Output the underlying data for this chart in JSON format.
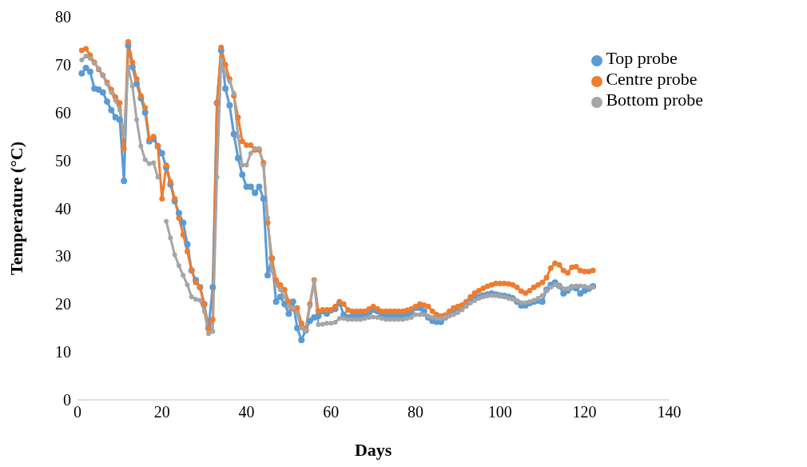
{
  "chart_data": {
    "type": "line",
    "xlabel": "Days",
    "ylabel": "Temperature (°C)",
    "x": [
      1,
      2,
      3,
      4,
      5,
      6,
      7,
      8,
      9,
      10,
      11,
      12,
      13,
      14,
      15,
      16,
      17,
      18,
      19,
      20,
      21,
      22,
      23,
      24,
      25,
      26,
      27,
      28,
      29,
      30,
      31,
      32,
      33,
      34,
      35,
      36,
      37,
      38,
      39,
      40,
      41,
      42,
      43,
      44,
      45,
      46,
      47,
      48,
      49,
      50,
      51,
      52,
      53,
      54,
      55,
      56,
      57,
      58,
      59,
      60,
      61,
      62,
      63,
      64,
      65,
      66,
      67,
      68,
      69,
      70,
      71,
      72,
      73,
      74,
      75,
      76,
      77,
      78,
      79,
      80,
      81,
      82,
      83,
      84,
      85,
      86,
      87,
      88,
      89,
      90,
      91,
      92,
      93,
      94,
      95,
      96,
      97,
      98,
      99,
      100,
      101,
      102,
      103,
      104,
      105,
      106,
      107,
      108,
      109,
      110,
      111,
      112,
      113,
      114,
      115,
      116,
      117,
      118,
      119,
      120,
      121,
      122
    ],
    "series": [
      {
        "name": "Top probe",
        "color": "#5b9bd5",
        "values": [
          68.2,
          69.3,
          68.5,
          65,
          64.8,
          64.2,
          62.3,
          60.5,
          59,
          58.5,
          45.7,
          74,
          69.5,
          66,
          63,
          60,
          54,
          54.5,
          53,
          51.5,
          48.5,
          45,
          41.5,
          39,
          37,
          32.5,
          27,
          25,
          23.5,
          20,
          15,
          23.5,
          62,
          73,
          65,
          61.5,
          55.5,
          50.5,
          47,
          44.5,
          44.5,
          43.2,
          44.5,
          42,
          26,
          29.5,
          20.5,
          21.5,
          20,
          18,
          20.5,
          15,
          12.5,
          14.5,
          16.5,
          17.2,
          17.5,
          18.5,
          18,
          18.7,
          19,
          20.2,
          17.8,
          17.2,
          17.4,
          17.5,
          17.5,
          17.8,
          18.2,
          18.8,
          18.5,
          17.8,
          17.6,
          17.6,
          17.6,
          17.6,
          17.7,
          17.8,
          18.3,
          19.2,
          19.2,
          18.5,
          17.2,
          16.5,
          16.3,
          16.3,
          17.2,
          17.8,
          18.3,
          18.8,
          19.5,
          20.3,
          20.8,
          21.2,
          21.5,
          21.8,
          22,
          22.2,
          22,
          21.8,
          21.7,
          21.5,
          21.2,
          20.5,
          19.7,
          19.7,
          20.2,
          20.5,
          20.7,
          20.5,
          23,
          24,
          24.5,
          23.8,
          22.2,
          22.8,
          23.5,
          23.3,
          22.2,
          22.8,
          23.2,
          23.7
        ]
      },
      {
        "name": "Centre probe",
        "color": "#ed7d31",
        "values": [
          73,
          73.3,
          72,
          70.5,
          69,
          67.8,
          66.3,
          64.8,
          63.2,
          62,
          52.5,
          74.8,
          70.5,
          67,
          63.5,
          61,
          54.5,
          55,
          53,
          42,
          49,
          45.5,
          42,
          38,
          34.5,
          31,
          27,
          24.5,
          23.5,
          20,
          14.8,
          16.8,
          62,
          73.6,
          70,
          67,
          63.5,
          59,
          54,
          53.2,
          53.2,
          52.2,
          52.2,
          49.5,
          37,
          29.5,
          25,
          24,
          23,
          20.5,
          19,
          19.2,
          16,
          14.8,
          20,
          25,
          18.5,
          18.8,
          18.8,
          18.8,
          19.5,
          20.5,
          20,
          18.8,
          18.5,
          18.5,
          18.5,
          18.5,
          19,
          19.5,
          19,
          18.5,
          18.5,
          18.5,
          18.5,
          18.5,
          18.5,
          18.7,
          19,
          19.5,
          20,
          19.8,
          19.5,
          18.5,
          17.8,
          17.5,
          17.7,
          18.5,
          19.2,
          19.5,
          19.8,
          20.5,
          21.5,
          22.3,
          22.8,
          23.3,
          23.7,
          24,
          24.3,
          24.3,
          24.3,
          24.2,
          24,
          23.5,
          22.7,
          22.3,
          22.8,
          23.5,
          24,
          24.5,
          25.5,
          27.5,
          28.5,
          28.2,
          27,
          26.5,
          27.7,
          27.8,
          27,
          26.8,
          26.8,
          27
        ]
      },
      {
        "name": "Bottom probe",
        "color": "#a5a5a5",
        "values": [
          71,
          71.8,
          71.3,
          70.3,
          69.2,
          67.8,
          66,
          64.2,
          62.5,
          60.5,
          55,
          69.5,
          65.5,
          58.5,
          53,
          50.2,
          49.3,
          49.5,
          46.5,
          null,
          37.3,
          33.8,
          30.3,
          28,
          26,
          24,
          21.5,
          21,
          20.8,
          18.5,
          13.8,
          14.3,
          46.5,
          71,
          68,
          66.5,
          64,
          55,
          49,
          49,
          51.5,
          52.5,
          52.5,
          49,
          38,
          27,
          24,
          23,
          21.5,
          19.5,
          19.2,
          18,
          15,
          14.5,
          19.5,
          24.8,
          15.7,
          15.8,
          16,
          16,
          16.2,
          17,
          17,
          16.8,
          16.8,
          16.8,
          16.8,
          17,
          17.2,
          17.3,
          17.2,
          17,
          16.8,
          16.8,
          16.8,
          16.8,
          16.8,
          17,
          17.2,
          17.8,
          17.8,
          17.8,
          17.5,
          17.2,
          17,
          17,
          17.2,
          17.5,
          17.8,
          18.2,
          18.8,
          19.5,
          20.2,
          20.7,
          21.2,
          21.5,
          21.7,
          21.8,
          21.8,
          21.7,
          21.5,
          21.2,
          21,
          20.7,
          20.3,
          20.3,
          20.5,
          20.8,
          21.2,
          21.8,
          22.8,
          23.5,
          24,
          23.8,
          23.2,
          23.2,
          23.5,
          23.8,
          23.8,
          23.7,
          23.5,
          23.5
        ]
      }
    ],
    "xlim": [
      0,
      140
    ],
    "xticks": [
      0,
      20,
      40,
      60,
      80,
      100,
      120,
      140
    ],
    "ylim": [
      0,
      80
    ],
    "yticks": [
      0,
      10,
      20,
      30,
      40,
      50,
      60,
      70,
      80
    ],
    "grid": false,
    "legend": "top right",
    "marker": "circle",
    "line_style": "solid"
  }
}
